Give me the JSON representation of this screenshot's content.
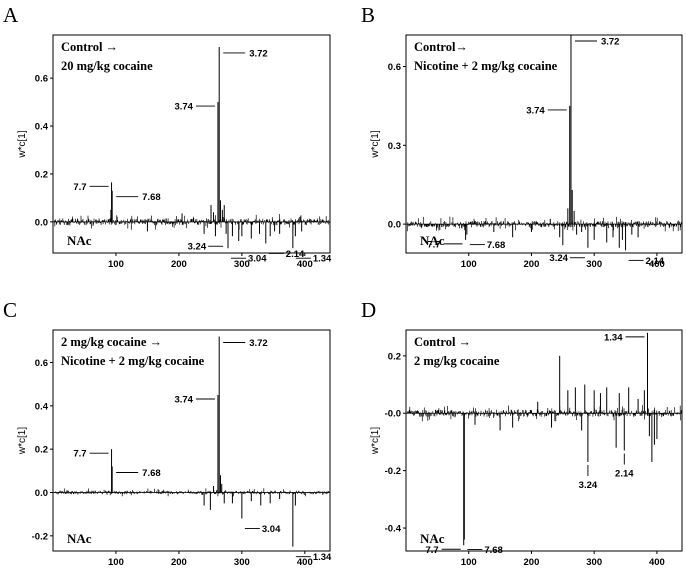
{
  "chart_data": [
    {
      "panel": "A",
      "type": "line",
      "title": [
        "Control →",
        "20 mg/kg cocaine"
      ],
      "region_label": "NAc",
      "ylabel": "w*c[1]",
      "xlim": [
        0,
        440
      ],
      "ylim": [
        -0.13,
        0.78
      ],
      "xticks": [
        100,
        200,
        300,
        400
      ],
      "yticks": [
        0.0,
        0.2,
        0.4,
        0.6
      ],
      "ytick_labels": [
        "0.0",
        "0.2",
        "0.4",
        "0.6"
      ],
      "series": [
        {
          "baseline_noise": 0.014,
          "peaks": [
            [
              93,
              0.165
            ],
            [
              94,
              0.13
            ],
            [
              92,
              0.05
            ],
            [
              150,
              -0.04
            ],
            [
              205,
              0.035
            ],
            [
              240,
              -0.05
            ],
            [
              251,
              0.07
            ],
            [
              255,
              0.04
            ],
            [
              258,
              -0.06
            ],
            [
              262,
              0.5
            ],
            [
              264,
              0.73
            ],
            [
              266,
              0.09
            ],
            [
              269,
              0.05
            ],
            [
              272,
              0.07
            ],
            [
              275,
              -0.05
            ],
            [
              278,
              -0.11
            ],
            [
              285,
              -0.06
            ],
            [
              295,
              -0.08
            ],
            [
              300,
              -0.06
            ],
            [
              315,
              -0.07
            ],
            [
              328,
              -0.05
            ],
            [
              338,
              -0.09
            ],
            [
              345,
              -0.06
            ],
            [
              352,
              -0.04
            ],
            [
              360,
              -0.05
            ],
            [
              381,
              -0.11
            ],
            [
              385,
              -0.06
            ],
            [
              395,
              -0.04
            ]
          ]
        }
      ],
      "annotations": [
        {
          "text": "3.72",
          "x": 264,
          "y": 0.73,
          "side": "right"
        },
        {
          "text": "3.74",
          "x": 262,
          "y": 0.5,
          "side": "left"
        },
        {
          "text": "7.7",
          "x": 93,
          "y": 0.165,
          "side": "left"
        },
        {
          "text": "7.68",
          "x": 94,
          "y": 0.13,
          "side": "right"
        },
        {
          "text": "3.24",
          "x": 275,
          "y": -0.06,
          "side": "left-below"
        },
        {
          "text": "3.04",
          "x": 278,
          "y": -0.11,
          "side": "right-below"
        },
        {
          "text": "2.14",
          "x": 338,
          "y": -0.09,
          "side": "right-below"
        },
        {
          "text": "1.34",
          "x": 381,
          "y": -0.11,
          "side": "right-below"
        }
      ]
    },
    {
      "panel": "B",
      "type": "line",
      "title": [
        "Control→",
        "Nicotine + 2 mg/kg cocaine"
      ],
      "region_label": "NAc",
      "ylabel": "w*c[1]",
      "xlim": [
        0,
        440
      ],
      "ylim": [
        -0.11,
        0.72
      ],
      "xticks": [
        100,
        200,
        300,
        400
      ],
      "yticks": [
        0.0,
        0.3,
        0.6
      ],
      "ytick_labels": [
        "0.0",
        "0.3",
        "0.6"
      ],
      "series": [
        {
          "baseline_noise": 0.012,
          "peaks": [
            [
              95,
              -0.06
            ],
            [
              97,
              -0.04
            ],
            [
              140,
              -0.03
            ],
            [
              170,
              -0.05
            ],
            [
              200,
              -0.03
            ],
            [
              230,
              0.02
            ],
            [
              245,
              -0.05
            ],
            [
              250,
              -0.08
            ],
            [
              258,
              0.06
            ],
            [
              261,
              0.45
            ],
            [
              263,
              0.72
            ],
            [
              265,
              0.13
            ],
            [
              268,
              0.05
            ],
            [
              272,
              -0.04
            ],
            [
              280,
              -0.03
            ],
            [
              290,
              -0.09
            ],
            [
              300,
              -0.06
            ],
            [
              320,
              -0.07
            ],
            [
              330,
              -0.05
            ],
            [
              340,
              -0.09
            ],
            [
              345,
              -0.06
            ],
            [
              350,
              -0.1
            ],
            [
              360,
              -0.04
            ],
            [
              370,
              -0.05
            ]
          ]
        }
      ],
      "annotations": [
        {
          "text": "3.72",
          "x": 263,
          "y": 0.72,
          "side": "right"
        },
        {
          "text": "3.74",
          "x": 261,
          "y": 0.45,
          "side": "left"
        },
        {
          "text": "7.7",
          "x": 95,
          "y": -0.06,
          "side": "left"
        },
        {
          "text": "7.68",
          "x": 97,
          "y": -0.04,
          "side": "right-below"
        },
        {
          "text": "3.24",
          "x": 290,
          "y": -0.09,
          "side": "left-below"
        },
        {
          "text": "2.14",
          "x": 350,
          "y": -0.1,
          "side": "right-below"
        }
      ]
    },
    {
      "panel": "C",
      "type": "line",
      "title": [
        "2 mg/kg cocaine →",
        "Nicotine + 2 mg/kg cocaine"
      ],
      "region_label": "NAc",
      "ylabel": "w*c[1]",
      "xlim": [
        0,
        440
      ],
      "ylim": [
        -0.27,
        0.75
      ],
      "xticks": [
        100,
        200,
        300,
        400
      ],
      "yticks": [
        -0.2,
        0.0,
        0.2,
        0.4,
        0.6
      ],
      "ytick_labels": [
        "-0.2",
        "0.0",
        "0.2",
        "0.4",
        "0.6"
      ],
      "series": [
        {
          "baseline_noise": 0.008,
          "peaks": [
            [
              93,
              0.2
            ],
            [
              94,
              0.12
            ],
            [
              240,
              -0.06
            ],
            [
              250,
              -0.08
            ],
            [
              255,
              0.03
            ],
            [
              262,
              0.45
            ],
            [
              264,
              0.72
            ],
            [
              266,
              0.08
            ],
            [
              268,
              0.04
            ],
            [
              272,
              -0.05
            ],
            [
              285,
              -0.05
            ],
            [
              300,
              -0.12
            ],
            [
              315,
              -0.04
            ],
            [
              330,
              -0.06
            ],
            [
              345,
              -0.05
            ],
            [
              360,
              -0.03
            ],
            [
              381,
              -0.25
            ],
            [
              385,
              -0.06
            ]
          ]
        }
      ],
      "annotations": [
        {
          "text": "3.72",
          "x": 264,
          "y": 0.72,
          "side": "right"
        },
        {
          "text": "3.74",
          "x": 262,
          "y": 0.45,
          "side": "left"
        },
        {
          "text": "7.7",
          "x": 93,
          "y": 0.2,
          "side": "left"
        },
        {
          "text": "7.68",
          "x": 94,
          "y": 0.12,
          "side": "right"
        },
        {
          "text": "3.04",
          "x": 300,
          "y": -0.12,
          "side": "right-below"
        },
        {
          "text": "1.34",
          "x": 381,
          "y": -0.25,
          "side": "right-below"
        }
      ]
    },
    {
      "panel": "D",
      "type": "line",
      "title": [
        "Control →",
        "2 mg/kg cocaine"
      ],
      "region_label": "NAc",
      "ylabel": "w*c[1]",
      "xlim": [
        0,
        440
      ],
      "ylim": [
        -0.48,
        0.29
      ],
      "xticks": [
        100,
        200,
        300,
        400
      ],
      "yticks": [
        -0.4,
        -0.2,
        0.0,
        0.2
      ],
      "ytick_labels": [
        "-0.4",
        "-0.2",
        "-0.0",
        "0.2"
      ],
      "series": [
        {
          "baseline_noise": 0.012,
          "peaks": [
            [
              92,
              -0.46
            ],
            [
              93,
              -0.44
            ],
            [
              110,
              -0.04
            ],
            [
              150,
              -0.06
            ],
            [
              170,
              -0.05
            ],
            [
              210,
              0.04
            ],
            [
              232,
              -0.05
            ],
            [
              245,
              0.2
            ],
            [
              258,
              0.08
            ],
            [
              270,
              0.09
            ],
            [
              280,
              -0.06
            ],
            [
              285,
              0.1
            ],
            [
              290,
              -0.17
            ],
            [
              300,
              0.08
            ],
            [
              310,
              0.07
            ],
            [
              320,
              0.09
            ],
            [
              335,
              -0.12
            ],
            [
              340,
              0.07
            ],
            [
              348,
              -0.13
            ],
            [
              355,
              0.09
            ],
            [
              370,
              0.05
            ],
            [
              380,
              0.08
            ],
            [
              385,
              0.28
            ],
            [
              388,
              -0.08
            ],
            [
              392,
              -0.17
            ],
            [
              396,
              -0.11
            ],
            [
              400,
              -0.09
            ]
          ]
        }
      ],
      "annotations": [
        {
          "text": "1.34",
          "x": 385,
          "y": 0.28,
          "side": "left"
        },
        {
          "text": "3.24",
          "x": 290,
          "y": -0.17,
          "side": "below"
        },
        {
          "text": "2.14",
          "x": 348,
          "y": -0.13,
          "side": "below"
        },
        {
          "text": "7.7",
          "x": 92,
          "y": -0.46,
          "side": "left"
        },
        {
          "text": "7.68",
          "x": 93,
          "y": -0.44,
          "side": "right-below"
        }
      ]
    }
  ]
}
